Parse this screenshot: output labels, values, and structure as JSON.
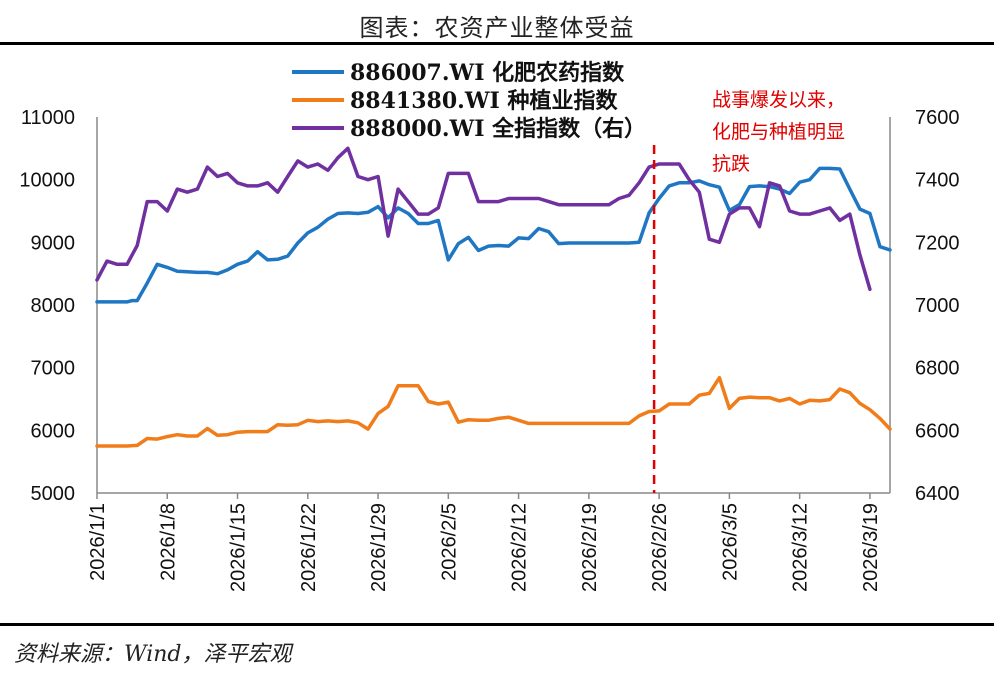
{
  "title": "图表：农资产业整体受益",
  "source": "资料来源：Wind，泽平宏观",
  "chart_data": {
    "type": "line",
    "left_axis": {
      "min": 5000,
      "max": 11000,
      "ticks": [
        "5000",
        "6000",
        "7000",
        "8000",
        "9000",
        "10000",
        "11000"
      ]
    },
    "right_axis": {
      "min": 6400,
      "max": 7600,
      "ticks": [
        "6400",
        "6600",
        "6800",
        "7000",
        "7200",
        "7400",
        "7600"
      ]
    },
    "x_ticks": [
      "2026/1/1",
      "2026/1/8",
      "2026/1/15",
      "2026/1/22",
      "2026/1/29",
      "2026/2/5",
      "2026/2/12",
      "2026/2/19",
      "2026/2/26",
      "2026/3/5",
      "2026/3/12",
      "2026/3/19"
    ],
    "x_range": [
      0,
      79
    ],
    "grid": false,
    "legend_position": "top-left",
    "annotation": {
      "x": 55.5,
      "lines": [
        "战事爆发以来，",
        "化肥与种植明显",
        "抗跌"
      ],
      "color": "#e00000"
    },
    "series": [
      {
        "name": "886007.WI 化肥农药指数",
        "axis": "left",
        "color": "#1f77c4",
        "points": [
          [
            0,
            8050
          ],
          [
            3,
            8050
          ],
          [
            3.5,
            8070
          ],
          [
            4,
            8070
          ],
          [
            5,
            8350
          ],
          [
            6,
            8650
          ],
          [
            7,
            8600
          ],
          [
            8,
            8540
          ],
          [
            9,
            8530
          ],
          [
            10,
            8520
          ],
          [
            11,
            8520
          ],
          [
            12,
            8500
          ],
          [
            13,
            8560
          ],
          [
            14,
            8650
          ],
          [
            15,
            8700
          ],
          [
            16,
            8850
          ],
          [
            17,
            8720
          ],
          [
            18,
            8730
          ],
          [
            19,
            8780
          ],
          [
            20,
            8990
          ],
          [
            21,
            9150
          ],
          [
            22,
            9240
          ],
          [
            23,
            9370
          ],
          [
            24,
            9460
          ],
          [
            25,
            9470
          ],
          [
            26,
            9460
          ],
          [
            27,
            9480
          ],
          [
            28,
            9570
          ],
          [
            29,
            9390
          ],
          [
            30,
            9550
          ],
          [
            31,
            9460
          ],
          [
            32,
            9300
          ],
          [
            33,
            9300
          ],
          [
            34,
            9350
          ],
          [
            35,
            8720
          ],
          [
            36,
            8980
          ],
          [
            37,
            9080
          ],
          [
            38,
            8870
          ],
          [
            39,
            8940
          ],
          [
            40,
            8950
          ],
          [
            41,
            8940
          ],
          [
            42,
            9070
          ],
          [
            43,
            9060
          ],
          [
            44,
            9220
          ],
          [
            45,
            9170
          ],
          [
            46,
            8980
          ],
          [
            47,
            8990
          ],
          [
            48,
            8990
          ],
          [
            50,
            8990
          ],
          [
            52,
            8990
          ],
          [
            53,
            8990
          ],
          [
            54,
            9000
          ],
          [
            55,
            9470
          ],
          [
            56,
            9700
          ],
          [
            57,
            9900
          ],
          [
            58,
            9950
          ],
          [
            59,
            9950
          ],
          [
            60,
            9980
          ],
          [
            61,
            9920
          ],
          [
            62,
            9880
          ],
          [
            63,
            9510
          ],
          [
            64,
            9600
          ],
          [
            65,
            9890
          ],
          [
            66,
            9900
          ],
          [
            67,
            9890
          ],
          [
            68,
            9850
          ],
          [
            69,
            9780
          ],
          [
            70,
            9960
          ],
          [
            71,
            10000
          ],
          [
            72,
            10180
          ],
          [
            73,
            10180
          ],
          [
            74,
            10170
          ],
          [
            75,
            9850
          ],
          [
            76,
            9530
          ],
          [
            77,
            9460
          ],
          [
            78,
            8930
          ],
          [
            79,
            8880
          ]
        ]
      },
      {
        "name": "8841380.WI 种植业指数",
        "axis": "left",
        "color": "#f07c1a",
        "points": [
          [
            0,
            5750
          ],
          [
            1,
            5750
          ],
          [
            2,
            5750
          ],
          [
            3,
            5750
          ],
          [
            4,
            5760
          ],
          [
            5,
            5870
          ],
          [
            6,
            5860
          ],
          [
            7,
            5900
          ],
          [
            8,
            5930
          ],
          [
            9,
            5910
          ],
          [
            10,
            5910
          ],
          [
            11,
            6030
          ],
          [
            12,
            5920
          ],
          [
            13,
            5930
          ],
          [
            14,
            5970
          ],
          [
            15,
            5980
          ],
          [
            16,
            5980
          ],
          [
            17,
            5980
          ],
          [
            18,
            6090
          ],
          [
            19,
            6080
          ],
          [
            20,
            6090
          ],
          [
            21,
            6160
          ],
          [
            22,
            6140
          ],
          [
            23,
            6150
          ],
          [
            24,
            6140
          ],
          [
            25,
            6150
          ],
          [
            26,
            6120
          ],
          [
            27,
            6020
          ],
          [
            28,
            6270
          ],
          [
            29,
            6380
          ],
          [
            30,
            6710
          ],
          [
            31,
            6710
          ],
          [
            32,
            6710
          ],
          [
            33,
            6460
          ],
          [
            34,
            6420
          ],
          [
            35,
            6450
          ],
          [
            36,
            6130
          ],
          [
            37,
            6170
          ],
          [
            38,
            6160
          ],
          [
            39,
            6160
          ],
          [
            40,
            6190
          ],
          [
            41,
            6210
          ],
          [
            42,
            6160
          ],
          [
            43,
            6110
          ],
          [
            44,
            6110
          ],
          [
            46,
            6110
          ],
          [
            48,
            6110
          ],
          [
            50,
            6110
          ],
          [
            52,
            6110
          ],
          [
            53,
            6110
          ],
          [
            54,
            6230
          ],
          [
            55,
            6300
          ],
          [
            56,
            6310
          ],
          [
            57,
            6420
          ],
          [
            58,
            6420
          ],
          [
            59,
            6420
          ],
          [
            60,
            6560
          ],
          [
            61,
            6590
          ],
          [
            62,
            6840
          ],
          [
            63,
            6350
          ],
          [
            64,
            6510
          ],
          [
            65,
            6530
          ],
          [
            66,
            6520
          ],
          [
            67,
            6520
          ],
          [
            68,
            6470
          ],
          [
            69,
            6510
          ],
          [
            70,
            6420
          ],
          [
            71,
            6480
          ],
          [
            72,
            6470
          ],
          [
            73,
            6490
          ],
          [
            74,
            6660
          ],
          [
            75,
            6600
          ],
          [
            76,
            6430
          ],
          [
            77,
            6330
          ],
          [
            78,
            6190
          ],
          [
            79,
            6020
          ]
        ]
      },
      {
        "name": "888000.WI 全指指数（右）",
        "axis": "right",
        "color": "#7030a0",
        "points": [
          [
            0,
            7080
          ],
          [
            1,
            7140
          ],
          [
            2,
            7130
          ],
          [
            3,
            7130
          ],
          [
            4,
            7190
          ],
          [
            5,
            7330
          ],
          [
            6,
            7330
          ],
          [
            7,
            7300
          ],
          [
            8,
            7370
          ],
          [
            9,
            7360
          ],
          [
            10,
            7370
          ],
          [
            11,
            7440
          ],
          [
            12,
            7410
          ],
          [
            13,
            7420
          ],
          [
            14,
            7390
          ],
          [
            15,
            7380
          ],
          [
            16,
            7380
          ],
          [
            17,
            7390
          ],
          [
            18,
            7360
          ],
          [
            19,
            7410
          ],
          [
            20,
            7460
          ],
          [
            21,
            7440
          ],
          [
            22,
            7450
          ],
          [
            23,
            7430
          ],
          [
            24,
            7470
          ],
          [
            25,
            7500
          ],
          [
            26,
            7410
          ],
          [
            27,
            7400
          ],
          [
            28,
            7410
          ],
          [
            29,
            7220
          ],
          [
            30,
            7370
          ],
          [
            31,
            7330
          ],
          [
            32,
            7290
          ],
          [
            33,
            7290
          ],
          [
            34,
            7310
          ],
          [
            35,
            7420
          ],
          [
            36,
            7420
          ],
          [
            37,
            7420
          ],
          [
            38,
            7330
          ],
          [
            39,
            7330
          ],
          [
            40,
            7330
          ],
          [
            41,
            7340
          ],
          [
            42,
            7340
          ],
          [
            43,
            7340
          ],
          [
            44,
            7340
          ],
          [
            45,
            7330
          ],
          [
            46,
            7320
          ],
          [
            47,
            7320
          ],
          [
            48,
            7320
          ],
          [
            49,
            7320
          ],
          [
            50,
            7320
          ],
          [
            51,
            7320
          ],
          [
            52,
            7340
          ],
          [
            53,
            7350
          ],
          [
            54,
            7390
          ],
          [
            55,
            7440
          ],
          [
            56,
            7450
          ],
          [
            57,
            7450
          ],
          [
            58,
            7450
          ],
          [
            59,
            7400
          ],
          [
            60,
            7360
          ],
          [
            61,
            7210
          ],
          [
            62,
            7200
          ],
          [
            63,
            7290
          ],
          [
            64,
            7310
          ],
          [
            65,
            7310
          ],
          [
            66,
            7250
          ],
          [
            67,
            7390
          ],
          [
            68,
            7380
          ],
          [
            69,
            7300
          ],
          [
            70,
            7290
          ],
          [
            71,
            7290
          ],
          [
            72,
            7300
          ],
          [
            73,
            7310
          ],
          [
            74,
            7270
          ],
          [
            75,
            7290
          ],
          [
            76,
            7160
          ],
          [
            77,
            7050
          ]
        ]
      }
    ]
  }
}
